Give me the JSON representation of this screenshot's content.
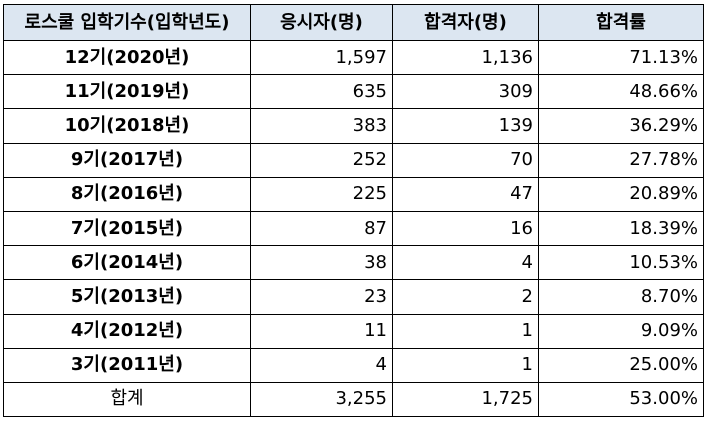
{
  "table": {
    "headers": [
      "로스쿨 입학기수(입학년도)",
      "응시자(명)",
      "합격자(명)",
      "합격률"
    ],
    "rows": [
      [
        "12기(2020년)",
        "1,597",
        "1,136",
        "71.13%"
      ],
      [
        "11기(2019년)",
        "635",
        "309",
        "48.66%"
      ],
      [
        "10기(2018년)",
        "383",
        "139",
        "36.29%"
      ],
      [
        "9기(2017년)",
        "252",
        "70",
        "27.78%"
      ],
      [
        "8기(2016년)",
        "225",
        "47",
        "20.89%"
      ],
      [
        "7기(2015년)",
        "87",
        "16",
        "18.39%"
      ],
      [
        "6기(2014년)",
        "38",
        "4",
        "10.53%"
      ],
      [
        "5기(2013년)",
        "23",
        "2",
        "8.70%"
      ],
      [
        "4기(2012년)",
        "11",
        "1",
        "9.09%"
      ],
      [
        "3기(2011년)",
        "4",
        "1",
        "25.00%"
      ]
    ],
    "total": [
      "합계",
      "3,255",
      "1,725",
      "53.00%"
    ]
  },
  "colors": {
    "header_background": "#dce6f1",
    "border": "#000000"
  }
}
